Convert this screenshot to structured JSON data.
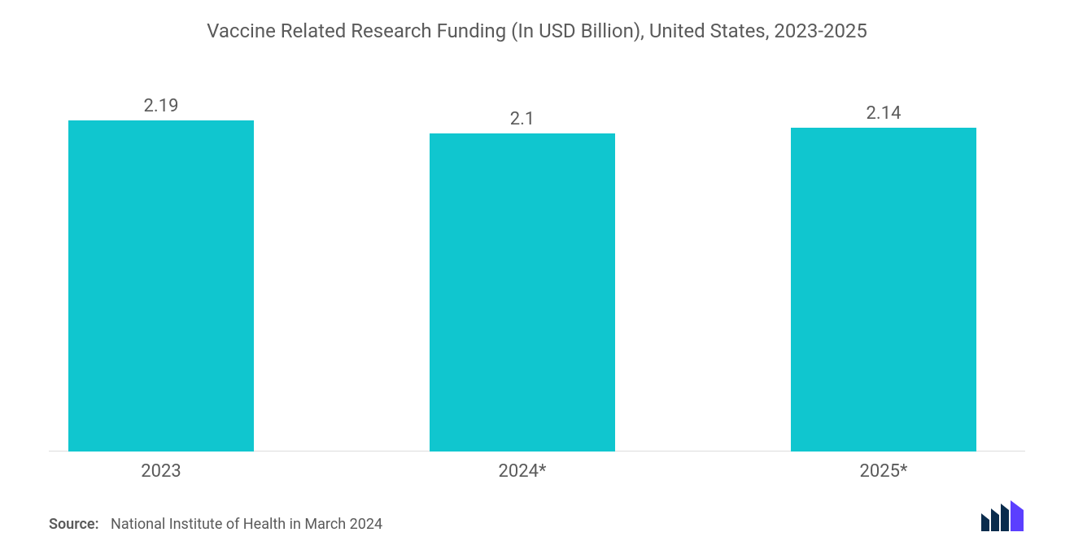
{
  "chart": {
    "type": "bar",
    "title": "Vaccine Related Research Funding (In USD Billion), United States, 2023-2025",
    "title_fontsize": 24,
    "title_color": "#5a5a5a",
    "categories": [
      "2023",
      "2024*",
      "2025*"
    ],
    "values": [
      2.19,
      2.1,
      2.14
    ],
    "value_labels": [
      "2.19",
      "2.1",
      "2.14"
    ],
    "bar_color": "#10c6cf",
    "background_color": "#ffffff",
    "grid_color": "#dddddd",
    "ylim": [
      0,
      2.5
    ],
    "label_fontsize": 22,
    "label_color": "#5a5a5a",
    "bar_width_pct": 19,
    "bar_gap_pct": 18,
    "bar_left_pcts": [
      2,
      39,
      76
    ]
  },
  "footer": {
    "source_label": "Source:",
    "source_text": "National Institute of Health in March 2024",
    "source_fontsize": 18,
    "logo_colors": {
      "dark": "#0a2c4d",
      "accent": "#5b3fff"
    }
  }
}
